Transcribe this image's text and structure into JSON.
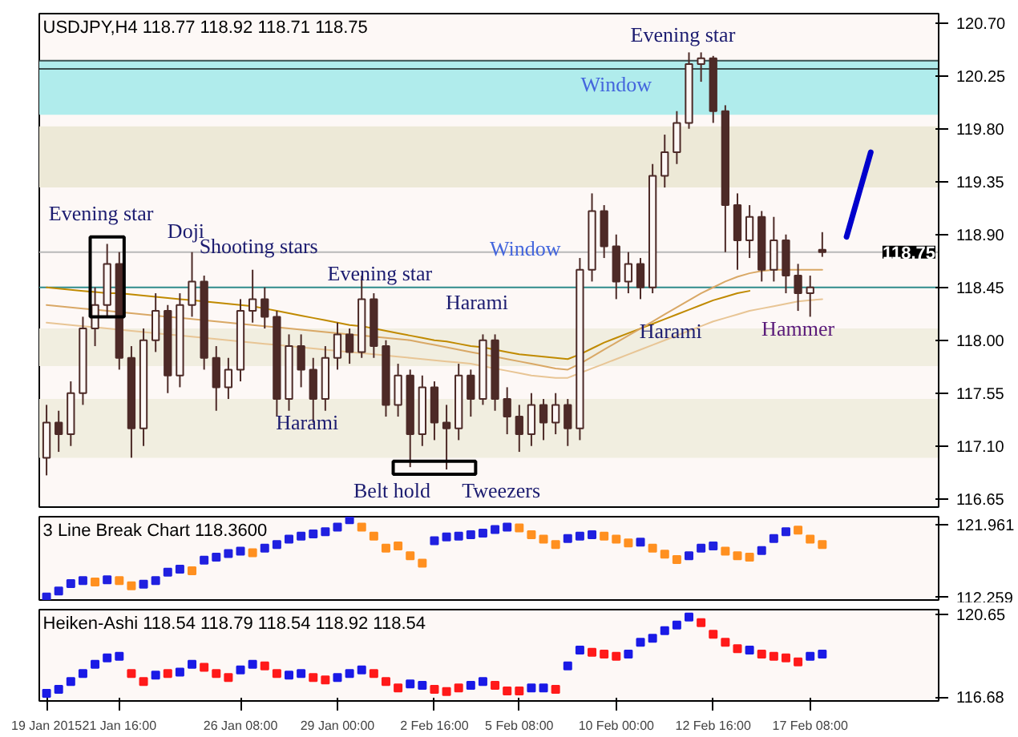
{
  "chart_data": [
    {
      "type": "candlestick",
      "title": "USDJPY,H4 118.77 118.92 118.71 118.75",
      "color": "#4d2a27",
      "categories": [
        null,
        null,
        null,
        null,
        null,
        null,
        null,
        null,
        null,
        null,
        null,
        null,
        null,
        null,
        null,
        null,
        null,
        null,
        null,
        null,
        null,
        null,
        null,
        null,
        null,
        null,
        null,
        null,
        null,
        null,
        null,
        null,
        null,
        null,
        null,
        null,
        null,
        null,
        null,
        null,
        null,
        null,
        null,
        null,
        null,
        null,
        null,
        null,
        null,
        null,
        null,
        null,
        null,
        null,
        null,
        null,
        null,
        null,
        null,
        null,
        null,
        null,
        null,
        null,
        null,
        null,
        null,
        null,
        null,
        null,
        null,
        null,
        null,
        null
      ],
      "ohlc": [
        [
          117.0,
          117.45,
          116.85,
          117.3
        ],
        [
          117.3,
          117.4,
          117.05,
          117.2
        ],
        [
          117.2,
          117.65,
          117.1,
          117.55
        ],
        [
          117.55,
          118.2,
          117.45,
          118.1
        ],
        [
          118.1,
          118.45,
          117.95,
          118.3
        ],
        [
          118.3,
          118.82,
          118.2,
          118.65
        ],
        [
          118.65,
          118.75,
          117.75,
          117.85
        ],
        [
          117.85,
          117.95,
          117.0,
          117.25
        ],
        [
          117.25,
          118.1,
          117.1,
          118.0
        ],
        [
          118.0,
          118.4,
          117.9,
          118.25
        ],
        [
          118.25,
          118.3,
          117.55,
          117.7
        ],
        [
          117.7,
          118.4,
          117.6,
          118.3
        ],
        [
          118.3,
          118.75,
          118.2,
          118.5
        ],
        [
          118.5,
          118.55,
          117.75,
          117.85
        ],
        [
          117.85,
          117.95,
          117.4,
          117.6
        ],
        [
          117.6,
          117.85,
          117.5,
          117.75
        ],
        [
          117.75,
          118.35,
          117.65,
          118.25
        ],
        [
          118.25,
          118.6,
          118.15,
          118.35
        ],
        [
          118.35,
          118.45,
          118.1,
          118.2
        ],
        [
          118.2,
          118.25,
          117.35,
          117.5
        ],
        [
          117.5,
          118.05,
          117.4,
          117.95
        ],
        [
          117.95,
          118.05,
          117.6,
          117.75
        ],
        [
          117.75,
          117.85,
          117.3,
          117.5
        ],
        [
          117.5,
          117.95,
          117.4,
          117.85
        ],
        [
          117.85,
          118.15,
          117.75,
          118.05
        ],
        [
          118.05,
          118.1,
          117.8,
          117.9
        ],
        [
          117.9,
          118.55,
          117.85,
          118.35
        ],
        [
          118.35,
          118.4,
          117.85,
          117.95
        ],
        [
          117.95,
          118.0,
          117.35,
          117.45
        ],
        [
          117.45,
          117.8,
          117.35,
          117.7
        ],
        [
          117.7,
          117.75,
          116.92,
          117.2
        ],
        [
          117.2,
          117.7,
          117.1,
          117.6
        ],
        [
          117.6,
          117.65,
          117.15,
          117.3
        ],
        [
          117.3,
          117.45,
          116.9,
          117.25
        ],
        [
          117.25,
          117.8,
          117.15,
          117.7
        ],
        [
          117.7,
          117.75,
          117.35,
          117.5
        ],
        [
          117.5,
          118.05,
          117.45,
          118.0
        ],
        [
          118.0,
          118.05,
          117.4,
          117.5
        ],
        [
          117.5,
          117.6,
          117.2,
          117.35
        ],
        [
          117.35,
          117.45,
          117.05,
          117.2
        ],
        [
          117.2,
          117.55,
          117.1,
          117.45
        ],
        [
          117.45,
          117.5,
          117.15,
          117.3
        ],
        [
          117.3,
          117.55,
          117.2,
          117.45
        ],
        [
          117.45,
          117.5,
          117.1,
          117.25
        ],
        [
          117.25,
          118.7,
          117.15,
          118.6
        ],
        [
          118.6,
          119.25,
          118.5,
          119.1
        ],
        [
          119.1,
          119.15,
          118.7,
          118.8
        ],
        [
          118.8,
          118.9,
          118.35,
          118.5
        ],
        [
          118.5,
          118.75,
          118.4,
          118.65
        ],
        [
          118.65,
          118.7,
          118.35,
          118.45
        ],
        [
          118.45,
          119.5,
          118.4,
          119.4
        ],
        [
          119.4,
          119.75,
          119.3,
          119.6
        ],
        [
          119.6,
          119.95,
          119.5,
          119.85
        ],
        [
          119.85,
          120.45,
          119.8,
          120.35
        ],
        [
          120.35,
          120.45,
          120.2,
          120.4
        ],
        [
          120.4,
          120.42,
          119.85,
          119.95
        ],
        [
          119.95,
          120.0,
          118.75,
          119.15
        ],
        [
          119.15,
          119.25,
          118.6,
          118.85
        ],
        [
          118.85,
          119.15,
          118.7,
          119.05
        ],
        [
          119.05,
          119.1,
          118.5,
          118.6
        ],
        [
          118.6,
          119.05,
          118.5,
          118.85
        ],
        [
          118.85,
          118.9,
          118.4,
          118.55
        ],
        [
          118.55,
          118.65,
          118.25,
          118.4
        ],
        [
          118.4,
          118.55,
          118.2,
          118.45
        ],
        [
          118.77,
          118.92,
          118.71,
          118.75
        ],
        null,
        null,
        null,
        null,
        null,
        null,
        null,
        null,
        null
      ],
      "series": [
        {
          "type": "line",
          "color": "#c08a00",
          "values": [
            118.45,
            118.44,
            118.43,
            118.42,
            118.41,
            118.4,
            118.4,
            118.39,
            118.38,
            118.37,
            118.36,
            118.35,
            118.34,
            118.33,
            118.32,
            118.31,
            118.3,
            118.29,
            118.27,
            118.25,
            118.23,
            118.21,
            118.19,
            118.17,
            118.15,
            118.13,
            118.12,
            118.1,
            118.08,
            118.06,
            118.04,
            118.02,
            118.0,
            117.99,
            117.97,
            117.95,
            117.94,
            117.92,
            117.9,
            117.88,
            117.87,
            117.86,
            117.85,
            117.84,
            117.88,
            117.93,
            117.98,
            118.02,
            118.06,
            118.1,
            118.14,
            118.18,
            118.22,
            118.26,
            118.3,
            118.34,
            118.37,
            118.4,
            118.42,
            null,
            null,
            null,
            null,
            null,
            null,
            null,
            null,
            null,
            null,
            null,
            null,
            null,
            null,
            null
          ]
        },
        {
          "type": "line",
          "color": "#d9a866",
          "values": [
            118.3,
            118.29,
            118.28,
            118.27,
            118.26,
            118.25,
            118.24,
            118.23,
            118.22,
            118.21,
            118.2,
            118.19,
            118.18,
            118.17,
            118.16,
            118.15,
            118.14,
            118.13,
            118.12,
            118.11,
            118.1,
            118.09,
            118.08,
            118.07,
            118.06,
            118.05,
            118.04,
            118.03,
            118.02,
            118.01,
            118.0,
            117.98,
            117.96,
            117.94,
            117.92,
            117.9,
            117.88,
            117.86,
            117.84,
            117.82,
            117.8,
            117.78,
            117.76,
            117.75,
            117.8,
            117.86,
            117.92,
            117.98,
            118.04,
            118.1,
            118.16,
            118.22,
            118.28,
            118.34,
            118.4,
            118.45,
            118.5,
            118.54,
            118.57,
            118.59,
            118.6,
            118.6,
            118.6,
            118.6,
            118.6,
            null,
            null,
            null,
            null,
            null,
            null,
            null,
            null,
            null
          ]
        },
        {
          "type": "line",
          "color": "#e8c595",
          "values": [
            118.15,
            118.14,
            118.13,
            118.12,
            118.11,
            118.1,
            118.09,
            118.08,
            118.07,
            118.06,
            118.05,
            118.04,
            118.03,
            118.02,
            118.01,
            118.0,
            117.99,
            117.98,
            117.97,
            117.96,
            117.95,
            117.94,
            117.93,
            117.92,
            117.91,
            117.9,
            117.89,
            117.88,
            117.87,
            117.86,
            117.85,
            117.84,
            117.83,
            117.82,
            117.81,
            117.8,
            117.78,
            117.76,
            117.74,
            117.72,
            117.7,
            117.69,
            117.68,
            117.68,
            117.72,
            117.76,
            117.8,
            117.84,
            117.88,
            117.92,
            117.96,
            118.0,
            118.04,
            118.08,
            118.12,
            118.16,
            118.19,
            118.22,
            118.25,
            118.27,
            118.29,
            118.31,
            118.33,
            118.34,
            118.35,
            null,
            null,
            null,
            null,
            null,
            null,
            null,
            null,
            null
          ]
        },
        {
          "type": "line",
          "color": "#0000cc",
          "values": [
            null,
            null,
            null,
            null,
            null,
            null,
            null,
            null,
            null,
            null,
            null,
            null,
            null,
            null,
            null,
            null,
            null,
            null,
            null,
            null,
            null,
            null,
            null,
            null,
            null,
            null,
            null,
            null,
            null,
            null,
            null,
            null,
            null,
            null,
            null,
            null,
            null,
            null,
            null,
            null,
            null,
            null,
            null,
            null,
            null,
            null,
            null,
            null,
            null,
            null,
            null,
            null,
            null,
            null,
            null,
            null,
            null,
            null,
            null,
            null,
            null,
            null,
            null,
            null,
            null,
            null,
            118.88,
            119.24,
            119.6,
            null,
            null,
            null,
            null,
            null
          ]
        }
      ],
      "bands": [
        {
          "axis": "y",
          "from": 119.92,
          "to": 120.38,
          "color": "#b0ecec"
        },
        {
          "axis": "y",
          "from": 119.3,
          "to": 119.82,
          "color": "#ede9d7"
        },
        {
          "axis": "y",
          "from": 117.78,
          "to": 118.1,
          "color": "#f1eee0"
        },
        {
          "axis": "y",
          "from": 117.0,
          "to": 117.5,
          "color": "#f1eee0"
        }
      ],
      "ref_lines": [
        {
          "axis": "y",
          "value": 120.38,
          "color": "#3a5050"
        },
        {
          "axis": "y",
          "value": 120.31,
          "color": "#3a5050"
        },
        {
          "axis": "y",
          "value": 118.45,
          "color": "#2e8b8b"
        },
        {
          "axis": "y",
          "value": 118.75,
          "color": "#b8b8b8",
          "label": "118.75"
        }
      ],
      "annotations": [
        "Evening star",
        "Doji",
        "Shooting stars",
        "Evening star",
        "Harami",
        "Belt hold",
        "Tweezers",
        "Harami",
        "Window",
        "Window",
        "Evening star",
        "Harami",
        "Hammer"
      ],
      "ylim": [
        116.58,
        120.78
      ],
      "yticks": [
        {
          "value": 120.7,
          "label": "120.70"
        },
        {
          "value": 120.25,
          "label": "120.25"
        },
        {
          "value": 119.8,
          "label": "119.80"
        },
        {
          "value": 119.35,
          "label": "119.35"
        },
        {
          "value": 118.9,
          "label": "118.90"
        },
        {
          "value": 118.45,
          "label": "118.45"
        },
        {
          "value": 118.0,
          "label": "118.00"
        },
        {
          "value": 117.55,
          "label": "117.55"
        },
        {
          "value": 117.1,
          "label": "117.10"
        },
        {
          "value": 116.65,
          "label": "116.65"
        }
      ],
      "tick_labels": "y"
    },
    {
      "type": "scatter",
      "title": "3 Line Break Chart 118.3600",
      "marker": "square",
      "categories": [
        null,
        null,
        null,
        null,
        null,
        null,
        null,
        null,
        null,
        null,
        null,
        null,
        null,
        null,
        null,
        null,
        null,
        null,
        null,
        null,
        null,
        null,
        null,
        null,
        null,
        null,
        null,
        null,
        null,
        null,
        null,
        null,
        null,
        null,
        null,
        null,
        null,
        null,
        null,
        null,
        null,
        null,
        null,
        null,
        null,
        null,
        null,
        null,
        null,
        null,
        null,
        null,
        null,
        null,
        null,
        null,
        null,
        null,
        null,
        null,
        null,
        null,
        null,
        null,
        null,
        null,
        null,
        null,
        null,
        null,
        null,
        null,
        null,
        null
      ],
      "values": [
        112.3,
        113.1,
        114.1,
        114.5,
        114.3,
        114.6,
        114.5,
        113.8,
        114.0,
        114.5,
        115.6,
        116.0,
        115.8,
        117.2,
        117.6,
        118.1,
        118.4,
        118.2,
        118.8,
        119.3,
        120.0,
        120.4,
        120.7,
        121.0,
        121.6,
        122.6,
        121.6,
        120.4,
        118.8,
        119.1,
        117.8,
        116.8,
        119.8,
        120.3,
        120.4,
        120.6,
        120.8,
        121.3,
        121.6,
        121.5,
        120.6,
        120.0,
        119.3,
        120.1,
        120.4,
        120.6,
        120.4,
        120.0,
        119.5,
        119.6,
        118.8,
        118.0,
        117.3,
        117.8,
        118.8,
        119.1,
        118.4,
        117.8,
        117.6,
        118.5,
        120.1,
        121.0,
        121.2,
        120.0,
        119.3,
        null,
        null,
        null,
        null,
        null,
        null,
        null,
        null,
        null
      ],
      "colors": [
        "#2020e0",
        "#2020e0",
        "#2020e0",
        "#2020e0",
        "#ff9020",
        "#2020e0",
        "#ff9020",
        "#ff9020",
        "#2020e0",
        "#2020e0",
        "#2020e0",
        "#2020e0",
        "#ff9020",
        "#2020e0",
        "#2020e0",
        "#2020e0",
        "#2020e0",
        "#ff9020",
        "#2020e0",
        "#2020e0",
        "#2020e0",
        "#2020e0",
        "#2020e0",
        "#2020e0",
        "#2020e0",
        "#2020e0",
        "#ff9020",
        "#ff9020",
        "#ff9020",
        "#ff9020",
        "#ff9020",
        "#ff9020",
        "#2020e0",
        "#2020e0",
        "#2020e0",
        "#2020e0",
        "#2020e0",
        "#2020e0",
        "#2020e0",
        "#ff9020",
        "#ff9020",
        "#ff9020",
        "#ff9020",
        "#2020e0",
        "#2020e0",
        "#2020e0",
        "#ff9020",
        "#ff9020",
        "#ff9020",
        "#2020e0",
        "#ff9020",
        "#ff9020",
        "#ff9020",
        "#2020e0",
        "#2020e0",
        "#2020e0",
        "#ff9020",
        "#ff9020",
        "#ff9020",
        "#2020e0",
        "#2020e0",
        "#2020e0",
        "#ff9020",
        "#ff9020",
        "#ff9020",
        null,
        null,
        null,
        null,
        null,
        null,
        null,
        null,
        null
      ],
      "ylim": [
        111.9,
        123.0
      ],
      "yticks": [
        121.961,
        112.259
      ],
      "tick_labels": "y"
    },
    {
      "type": "scatter",
      "title": "Heiken-Ashi 118.54 118.79 118.54 118.92 118.54",
      "marker": "square",
      "categories": [
        "19 Jan 2015",
        null,
        null,
        null,
        null,
        null,
        "21 Jan 16:00",
        null,
        null,
        null,
        null,
        null,
        null,
        null,
        null,
        null,
        "26 Jan 08:00",
        null,
        null,
        null,
        null,
        null,
        null,
        null,
        "29 Jan 00:00",
        null,
        null,
        null,
        null,
        null,
        null,
        null,
        "2 Feb 16:00",
        null,
        null,
        null,
        null,
        null,
        null,
        "5 Feb 08:00",
        null,
        null,
        null,
        null,
        null,
        null,
        null,
        "10 Feb 00:00",
        null,
        null,
        null,
        null,
        null,
        null,
        null,
        "12 Feb 16:00",
        null,
        null,
        null,
        null,
        null,
        null,
        null,
        "17 Feb 08:00",
        null,
        null,
        null,
        null,
        null,
        null,
        null,
        null,
        null,
        null
      ],
      "values": [
        116.87,
        117.06,
        117.44,
        117.82,
        118.27,
        118.57,
        118.65,
        117.82,
        117.44,
        117.74,
        117.82,
        117.89,
        118.27,
        118.12,
        117.82,
        117.63,
        118.0,
        118.27,
        118.19,
        117.82,
        117.74,
        117.82,
        117.63,
        117.51,
        117.63,
        117.82,
        118.0,
        117.82,
        117.44,
        117.13,
        117.32,
        117.25,
        117.06,
        116.95,
        117.13,
        117.25,
        117.44,
        117.25,
        116.98,
        116.98,
        117.13,
        117.13,
        117.06,
        118.19,
        118.95,
        118.84,
        118.76,
        118.65,
        118.76,
        119.33,
        119.52,
        119.89,
        120.16,
        120.54,
        120.27,
        119.71,
        119.33,
        119.02,
        118.95,
        118.76,
        118.65,
        118.57,
        118.38,
        118.65,
        118.76,
        null,
        null,
        null,
        null,
        null,
        null,
        null,
        null,
        null
      ],
      "colors": [
        "#1a1ae6",
        "#1a1ae6",
        "#1a1ae6",
        "#1a1ae6",
        "#1a1ae6",
        "#1a1ae6",
        "#1a1ae6",
        "#ff1a1a",
        "#ff1a1a",
        "#1a1ae6",
        "#ff1a1a",
        "#1a1ae6",
        "#1a1ae6",
        "#ff1a1a",
        "#ff1a1a",
        "#ff1a1a",
        "#1a1ae6",
        "#1a1ae6",
        "#ff1a1a",
        "#ff1a1a",
        "#1a1ae6",
        "#1a1ae6",
        "#ff1a1a",
        "#ff1a1a",
        "#1a1ae6",
        "#1a1ae6",
        "#1a1ae6",
        "#ff1a1a",
        "#ff1a1a",
        "#ff1a1a",
        "#1a1ae6",
        "#1a1ae6",
        "#ff1a1a",
        "#ff1a1a",
        "#ff1a1a",
        "#1a1ae6",
        "#1a1ae6",
        "#ff1a1a",
        "#ff1a1a",
        "#ff1a1a",
        "#1a1ae6",
        "#1a1ae6",
        "#ff1a1a",
        "#1a1ae6",
        "#1a1ae6",
        "#ff1a1a",
        "#ff1a1a",
        "#ff1a1a",
        "#1a1ae6",
        "#1a1ae6",
        "#1a1ae6",
        "#1a1ae6",
        "#1a1ae6",
        "#1a1ae6",
        "#ff1a1a",
        "#ff1a1a",
        "#ff1a1a",
        "#ff1a1a",
        "#1a1ae6",
        "#ff1a1a",
        "#ff1a1a",
        "#ff1a1a",
        "#ff1a1a",
        "#1a1ae6",
        "#1a1ae6",
        null,
        null,
        null,
        null,
        null,
        null,
        null,
        null,
        null
      ],
      "ylim": [
        116.5,
        120.9
      ],
      "yticks": [
        120.65,
        116.68
      ]
    }
  ]
}
